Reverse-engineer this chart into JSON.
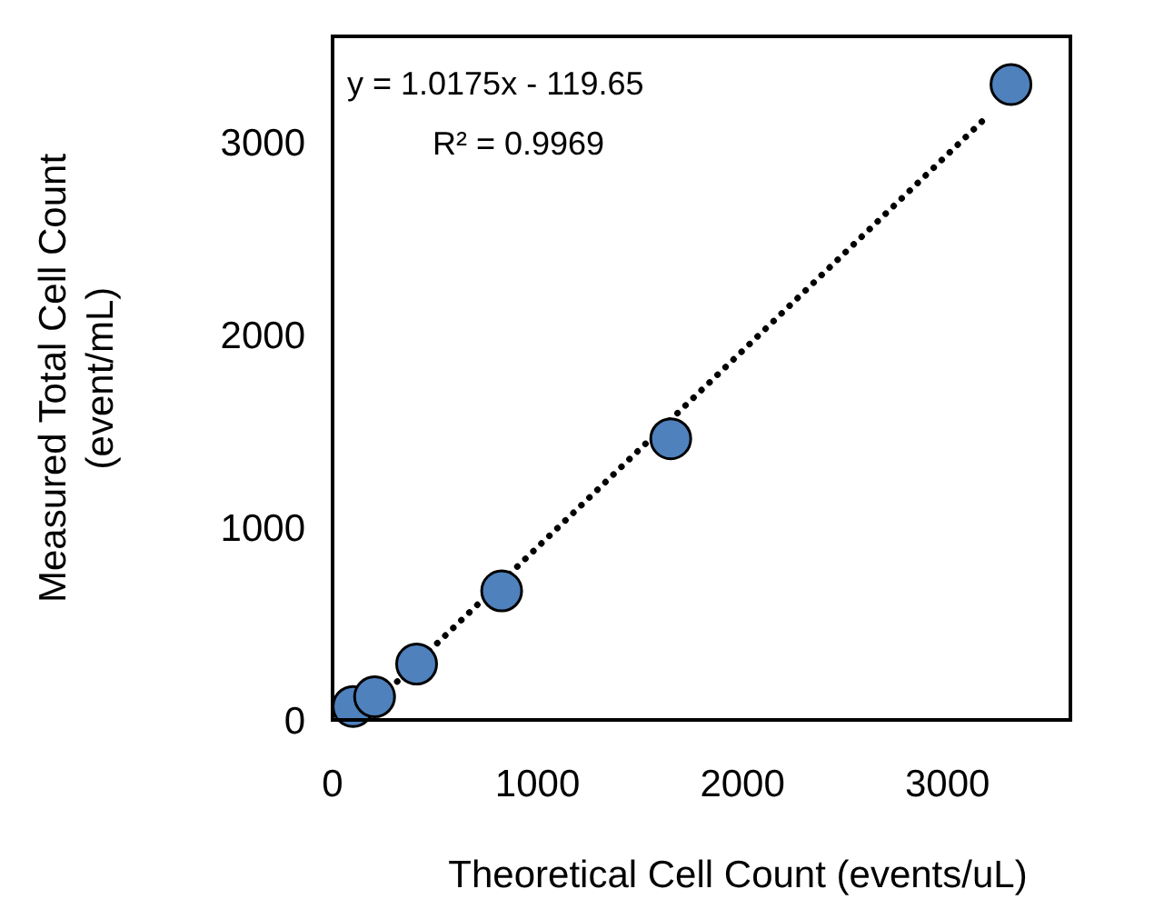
{
  "chart_data": {
    "type": "scatter",
    "xlabel": "Theoretical Cell Count (events/uL)",
    "ylabel": "Measured Total Cell Count\n(event/mL)",
    "xlim": [
      0,
      3600
    ],
    "ylim": [
      0,
      3550
    ],
    "xticks": [
      0,
      1000,
      2000,
      3000
    ],
    "yticks": [
      0,
      1000,
      2000,
      3000
    ],
    "grid": false,
    "legend": false,
    "annotations": [
      "y = 1.0175x - 119.65",
      "R² = 0.9969"
    ],
    "series": [
      {
        "color": "#4f81bd",
        "marker": "circle",
        "x": [
          100,
          205,
          410,
          825,
          1650,
          3310
        ],
        "values": [
          70,
          120,
          290,
          670,
          1460,
          3300
        ]
      },
      {
        "type": "line",
        "color": "#000000",
        "line_style": "dotted",
        "x": [
          120,
          3200
        ],
        "values": [
          0,
          3140
        ]
      }
    ]
  }
}
